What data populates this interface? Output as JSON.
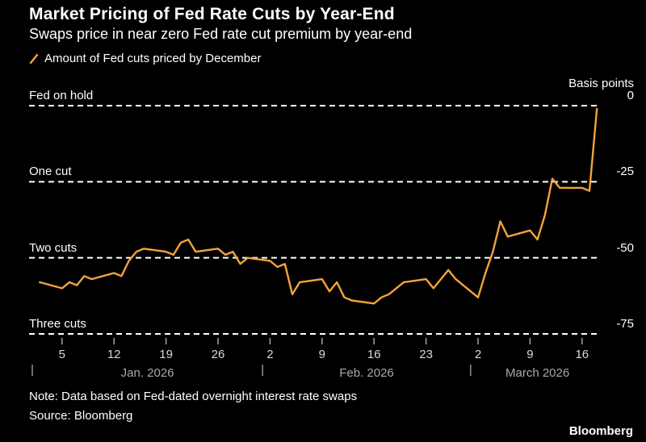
{
  "header": {
    "title": "Market Pricing of Fed Rate Cuts by Year-End",
    "subtitle": "Swaps price in near zero Fed rate cut premium by year-end"
  },
  "legend": {
    "label": "Amount of Fed cuts priced by December"
  },
  "axis": {
    "y_unit": "Basis points"
  },
  "footer": {
    "note": "Note: Data based on Fed-dated overnight interest rate swaps",
    "source": "Source: Bloomberg",
    "brand": "Bloomberg"
  },
  "colors": {
    "background": "#000000",
    "accent": "#f2a43a",
    "gridline": "#ffffff",
    "tick_text": "#d9d9d9",
    "month_text": "#a8a8a8"
  },
  "chart_data": {
    "type": "line",
    "title": "Market Pricing of Fed Rate Cuts by Year-End",
    "subtitle": "Swaps price in near zero Fed rate cut premium by year-end",
    "y_unit": "Basis points",
    "ylim": [
      -75,
      0
    ],
    "x_domain_days": [
      0,
      77
    ],
    "grid": "dashed-horizontal",
    "legend_position": "top-left",
    "y_gridlines": [
      {
        "value": 0,
        "label": "Fed on hold",
        "tick": "0"
      },
      {
        "value": -25,
        "label": "One cut",
        "tick": "-25"
      },
      {
        "value": -50,
        "label": "Two cuts",
        "tick": "-50"
      },
      {
        "value": -75,
        "label": "Three cuts",
        "tick": "-75"
      }
    ],
    "x_ticks": [
      {
        "day": 4,
        "label": "5"
      },
      {
        "day": 11,
        "label": "12"
      },
      {
        "day": 18,
        "label": "19"
      },
      {
        "day": 25,
        "label": "26"
      },
      {
        "day": 32,
        "label": "2"
      },
      {
        "day": 39,
        "label": "9"
      },
      {
        "day": 46,
        "label": "16"
      },
      {
        "day": 53,
        "label": "23"
      },
      {
        "day": 60,
        "label": "2"
      },
      {
        "day": 67,
        "label": "9"
      },
      {
        "day": 74,
        "label": "16"
      }
    ],
    "months": [
      {
        "label": "Jan. 2026",
        "start_day": 0,
        "end_day": 31
      },
      {
        "label": "Feb. 2026",
        "start_day": 31,
        "end_day": 59
      },
      {
        "label": "March 2026",
        "start_day": 59,
        "end_day": 77
      }
    ],
    "series": [
      {
        "name": "Amount of Fed cuts priced by December",
        "color": "#f2a43a",
        "points": [
          [
            1,
            -58
          ],
          [
            4,
            -60
          ],
          [
            5,
            -58
          ],
          [
            6,
            -59
          ],
          [
            7,
            -56
          ],
          [
            8,
            -57
          ],
          [
            11,
            -55
          ],
          [
            12,
            -56
          ],
          [
            13,
            -51
          ],
          [
            14,
            -48
          ],
          [
            15,
            -47
          ],
          [
            18,
            -48
          ],
          [
            19,
            -49
          ],
          [
            20,
            -45
          ],
          [
            21,
            -44
          ],
          [
            22,
            -48
          ],
          [
            25,
            -47
          ],
          [
            26,
            -49
          ],
          [
            27,
            -48
          ],
          [
            28,
            -52
          ],
          [
            29,
            -50
          ],
          [
            32,
            -51
          ],
          [
            33,
            -53
          ],
          [
            34,
            -52
          ],
          [
            35,
            -62
          ],
          [
            36,
            -58
          ],
          [
            39,
            -57
          ],
          [
            40,
            -61
          ],
          [
            41,
            -58
          ],
          [
            42,
            -63
          ],
          [
            43,
            -64
          ],
          [
            46,
            -65
          ],
          [
            47,
            -63
          ],
          [
            48,
            -62
          ],
          [
            49,
            -60
          ],
          [
            50,
            -58
          ],
          [
            53,
            -57
          ],
          [
            54,
            -60
          ],
          [
            55,
            -57
          ],
          [
            56,
            -54
          ],
          [
            57,
            -57
          ],
          [
            60,
            -63
          ],
          [
            61,
            -55
          ],
          [
            62,
            -48
          ],
          [
            63,
            -38
          ],
          [
            64,
            -43
          ],
          [
            67,
            -41
          ],
          [
            68,
            -44
          ],
          [
            69,
            -36
          ],
          [
            70,
            -24
          ],
          [
            71,
            -27
          ],
          [
            74,
            -27
          ],
          [
            75,
            -28
          ],
          [
            76,
            -1
          ]
        ]
      }
    ]
  }
}
